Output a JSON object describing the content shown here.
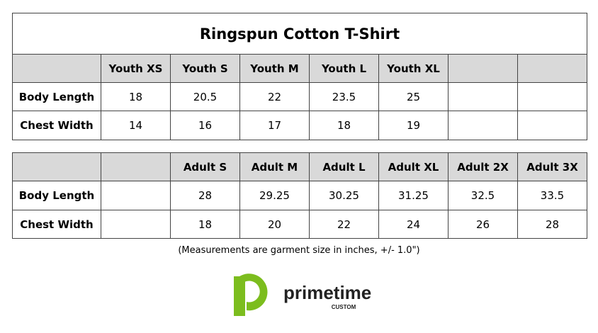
{
  "title": "Ringspun Cotton T-Shirt",
  "youth": {
    "columns": [
      "Youth XS",
      "Youth S",
      "Youth M",
      "Youth L",
      "Youth XL"
    ],
    "rows": [
      {
        "label": "Body Length",
        "values": [
          18,
          20.5,
          22,
          23.5,
          25
        ]
      },
      {
        "label": "Chest Width",
        "values": [
          14,
          16,
          17,
          18,
          19
        ]
      }
    ]
  },
  "adult": {
    "columns": [
      "Adult S",
      "Adult M",
      "Adult L",
      "Adult XL",
      "Adult 2X",
      "Adult 3X"
    ],
    "rows": [
      {
        "label": "Body Length",
        "values": [
          28,
          29.25,
          30.25,
          31.25,
          32.5,
          33.5
        ]
      },
      {
        "label": "Chest Width",
        "values": [
          18,
          20,
          22,
          24,
          26,
          28
        ]
      }
    ]
  },
  "note": "(Measurements are garment size in inches, +/- 1.0\")",
  "logo": {
    "name": "primetime",
    "tagline": "CUSTOM"
  }
}
